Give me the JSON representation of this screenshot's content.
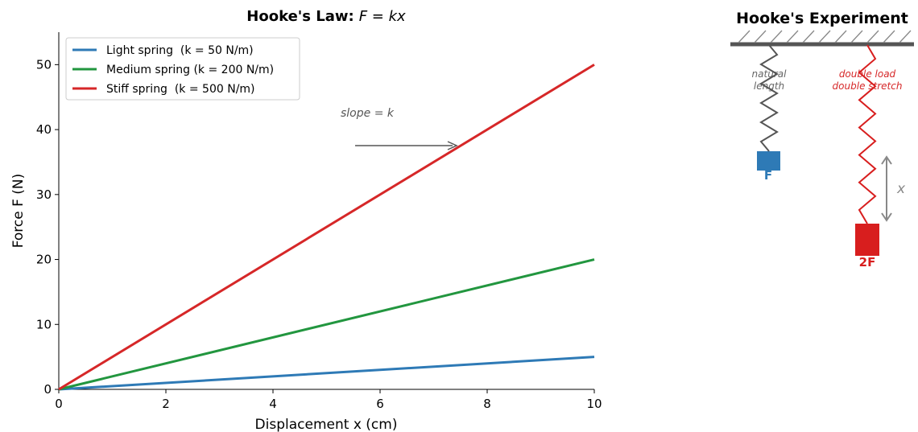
{
  "chart_data": {
    "type": "line",
    "title": "Hooke's Law:",
    "title_math": "F = kx",
    "x_label": "Displacement x (cm)",
    "y_label": "Force F (N)",
    "x": [
      0,
      10
    ],
    "series": [
      {
        "name": "Light spring  (k = 50 N/m)",
        "color": "#2e7ab6",
        "values": [
          0,
          5
        ]
      },
      {
        "name": "Medium spring (k = 200 N/m)",
        "color": "#22963f",
        "values": [
          0,
          20
        ]
      },
      {
        "name": "Stiff spring  (k = 500 N/m)",
        "color": "#d62728",
        "values": [
          0,
          50
        ]
      }
    ],
    "xlim": [
      0,
      10
    ],
    "xticks": [
      0,
      2,
      4,
      6,
      8,
      10
    ],
    "ylim": [
      0,
      55
    ],
    "yticks": [
      0,
      10,
      20,
      30,
      40,
      50
    ],
    "grid": false,
    "legend": "upper left",
    "annotation": "slope = k"
  },
  "diagram": {
    "title": "Hooke's Experiment",
    "left_label": [
      "natural",
      "length"
    ],
    "left_load": "F",
    "right_label": [
      "double load",
      "double stretch"
    ],
    "right_load": "2F",
    "stretch_label": "x"
  }
}
